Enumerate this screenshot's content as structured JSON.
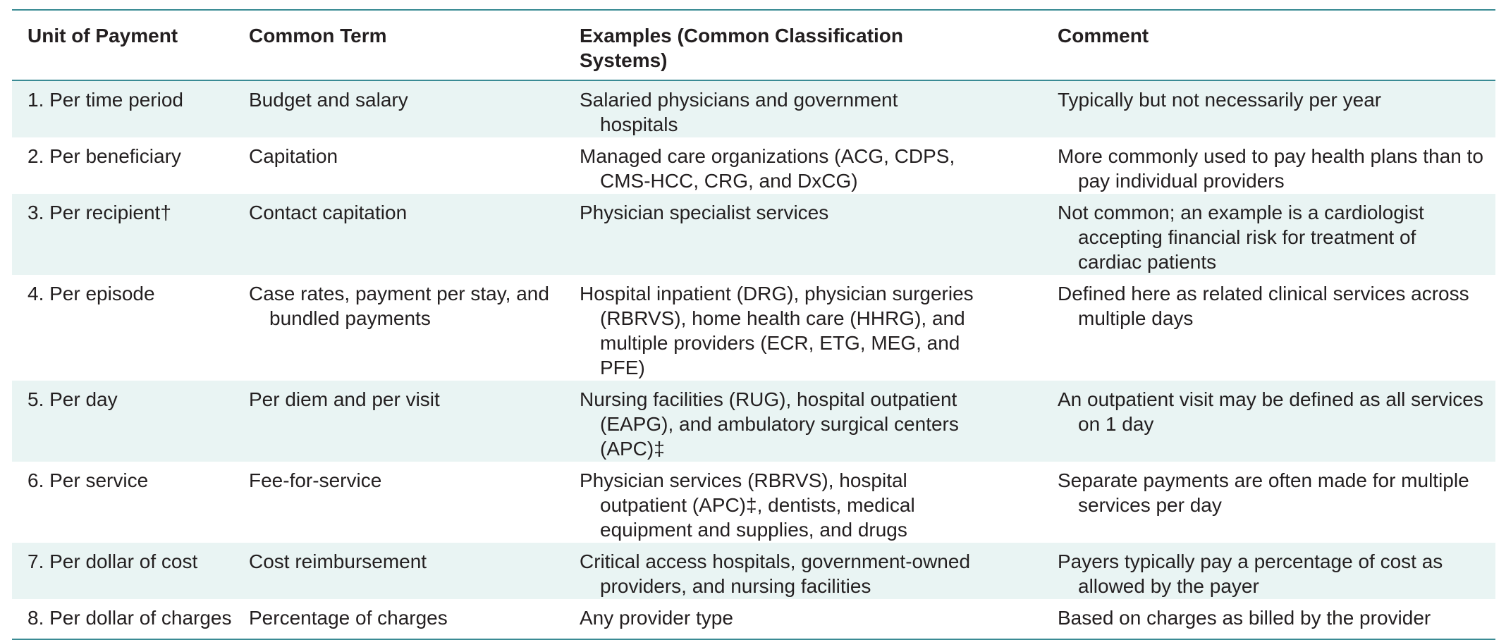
{
  "table": {
    "headers": [
      "Unit of Payment",
      "Common Term",
      "Examples (Common Classification Systems)",
      "Comment"
    ],
    "rows": [
      {
        "unit": "1. Per time period",
        "term": "Budget and salary",
        "examples": "Salaried physicians and government hospitals",
        "comment": "Typically but not necessarily per year"
      },
      {
        "unit": "2. Per beneficiary",
        "term": "Capitation",
        "examples": "Managed care organizations (ACG, CDPS, CMS-HCC, CRG, and DxCG)",
        "comment": "More commonly used to pay health plans than to pay individual providers"
      },
      {
        "unit": "3. Per recipient†",
        "term": "Contact capitation",
        "examples": "Physician specialist services",
        "comment": "Not common; an example is a cardiologist accepting financial risk for treatment of cardiac patients"
      },
      {
        "unit": "4. Per episode",
        "term": "Case rates, payment per stay, and bundled payments",
        "examples": "Hospital inpatient (DRG), physician surgeries (RBRVS), home health care (HHRG), and multiple providers (ECR, ETG, MEG, and PFE)",
        "comment": "Defined here as related clinical services across multiple days"
      },
      {
        "unit": "5. Per day",
        "term": "Per diem and per visit",
        "examples": "Nursing facilities (RUG), hospital outpatient (EAPG), and ambulatory surgical centers (APC)‡",
        "comment": "An outpatient visit may be defined as all services on 1 day"
      },
      {
        "unit": "6. Per service",
        "term": "Fee-for-service",
        "examples": "Physician services (RBRVS), hospital outpatient (APC)‡, dentists, medical equipment and supplies, and drugs",
        "comment": "Separate payments are often made for multiple services per day"
      },
      {
        "unit": "7. Per dollar of cost",
        "term": "Cost reimbursement",
        "examples": "Critical access hospitals, government-owned providers, and nursing facilities",
        "comment": "Payers typically pay a percentage of cost as allowed by the payer"
      },
      {
        "unit": "8. Per dollar of charges",
        "term": "Percentage of charges",
        "examples": "Any provider type",
        "comment": "Based on charges as billed by the provider"
      }
    ]
  }
}
